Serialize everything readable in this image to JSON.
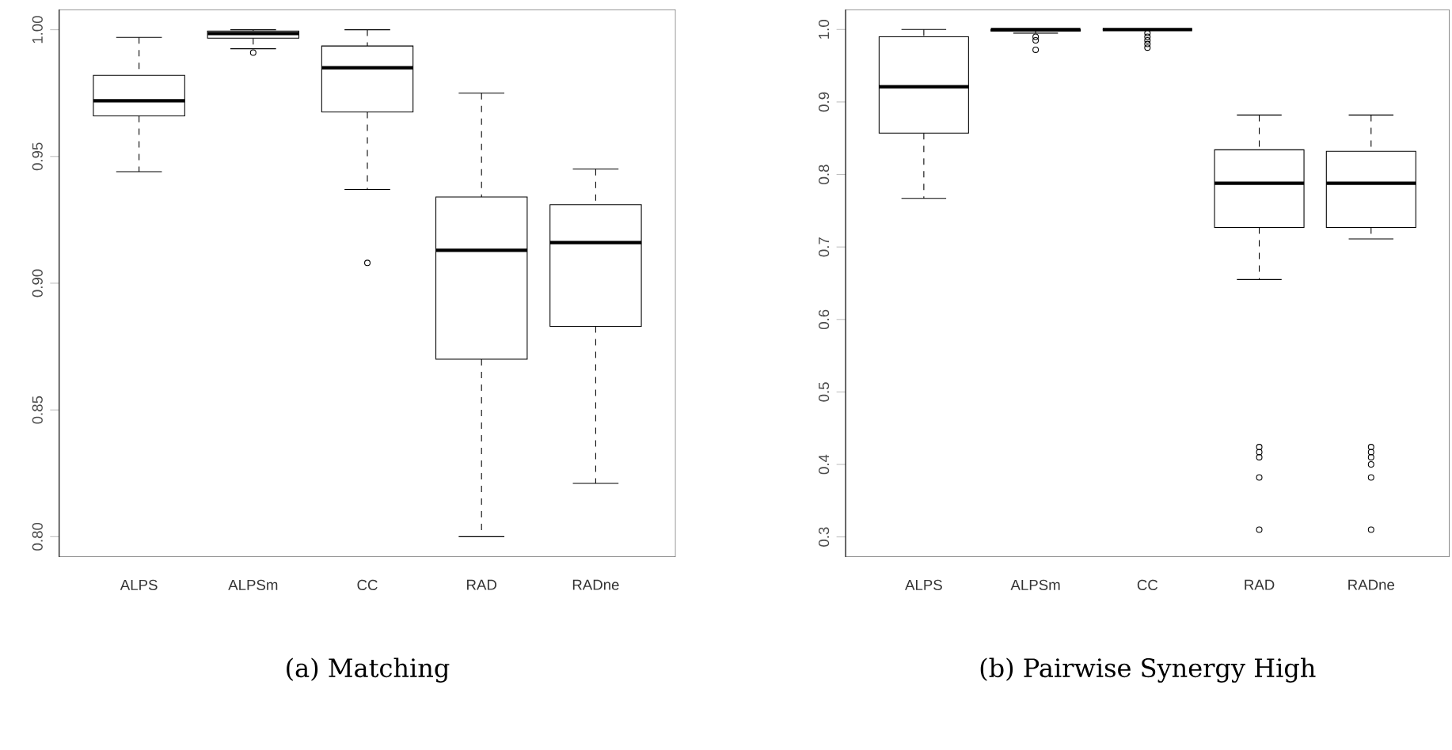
{
  "chart_data": [
    {
      "type": "box",
      "title": "(a) Matching",
      "categories": [
        "ALPS",
        "ALPSm",
        "CC",
        "RAD",
        "RADne"
      ],
      "ylim": [
        0.792,
        1.008
      ],
      "yticks": [
        {
          "value": 0.8,
          "label": "0.80"
        },
        {
          "value": 0.85,
          "label": "0.85"
        },
        {
          "value": 0.9,
          "label": "0.90"
        },
        {
          "value": 0.95,
          "label": "0.95"
        },
        {
          "value": 1.0,
          "label": "1.00"
        }
      ],
      "boxes": [
        {
          "low": 0.944,
          "q1": 0.966,
          "median": 0.972,
          "q3": 0.982,
          "high": 0.997
        },
        {
          "low": 0.9925,
          "q1": 0.9967,
          "median": 0.9985,
          "q3": 0.9995,
          "high": 1.0,
          "outliers": [
            0.991
          ]
        },
        {
          "low": 0.937,
          "q1": 0.9676,
          "median": 0.985,
          "q3": 0.9936,
          "high": 1.0,
          "outliers": [
            0.908
          ]
        },
        {
          "low": 0.8,
          "q1": 0.87,
          "median": 0.913,
          "q3": 0.934,
          "high": 0.975
        },
        {
          "low": 0.821,
          "q1": 0.883,
          "median": 0.916,
          "q3": 0.931,
          "high": 0.945
        }
      ]
    },
    {
      "type": "box",
      "title": "(b) Pairwise Synergy High",
      "categories": [
        "ALPS",
        "ALPSm",
        "CC",
        "RAD",
        "RADne"
      ],
      "ylim": [
        0.2724,
        1.0276
      ],
      "yticks": [
        {
          "value": 0.3,
          "label": "0.3"
        },
        {
          "value": 0.4,
          "label": "0.4"
        },
        {
          "value": 0.5,
          "label": "0.5"
        },
        {
          "value": 0.6,
          "label": "0.6"
        },
        {
          "value": 0.7,
          "label": "0.7"
        },
        {
          "value": 0.8,
          "label": "0.8"
        },
        {
          "value": 0.9,
          "label": "0.9"
        },
        {
          "value": 1.0,
          "label": "1.0"
        }
      ],
      "boxes": [
        {
          "low": 0.767,
          "q1": 0.857,
          "median": 0.921,
          "q3": 0.99,
          "high": 1.0
        },
        {
          "low": 0.995,
          "q1": 0.998,
          "median": 1.0,
          "q3": 1.0,
          "high": 1.0,
          "outliers": [
            0.99,
            0.985,
            0.972
          ]
        },
        {
          "low": 1.0,
          "q1": 1.0,
          "median": 1.0,
          "q3": 1.0,
          "high": 1.0,
          "outliers": [
            0.995,
            0.99,
            0.985,
            0.98,
            0.975
          ]
        },
        {
          "low": 0.655,
          "q1": 0.727,
          "median": 0.788,
          "q3": 0.834,
          "high": 0.882,
          "outliers": [
            0.424,
            0.417,
            0.41,
            0.382,
            0.31
          ]
        },
        {
          "low": 0.711,
          "q1": 0.727,
          "median": 0.788,
          "q3": 0.832,
          "high": 0.882,
          "outliers": [
            0.424,
            0.417,
            0.41,
            0.4,
            0.382,
            0.31
          ]
        }
      ]
    }
  ]
}
